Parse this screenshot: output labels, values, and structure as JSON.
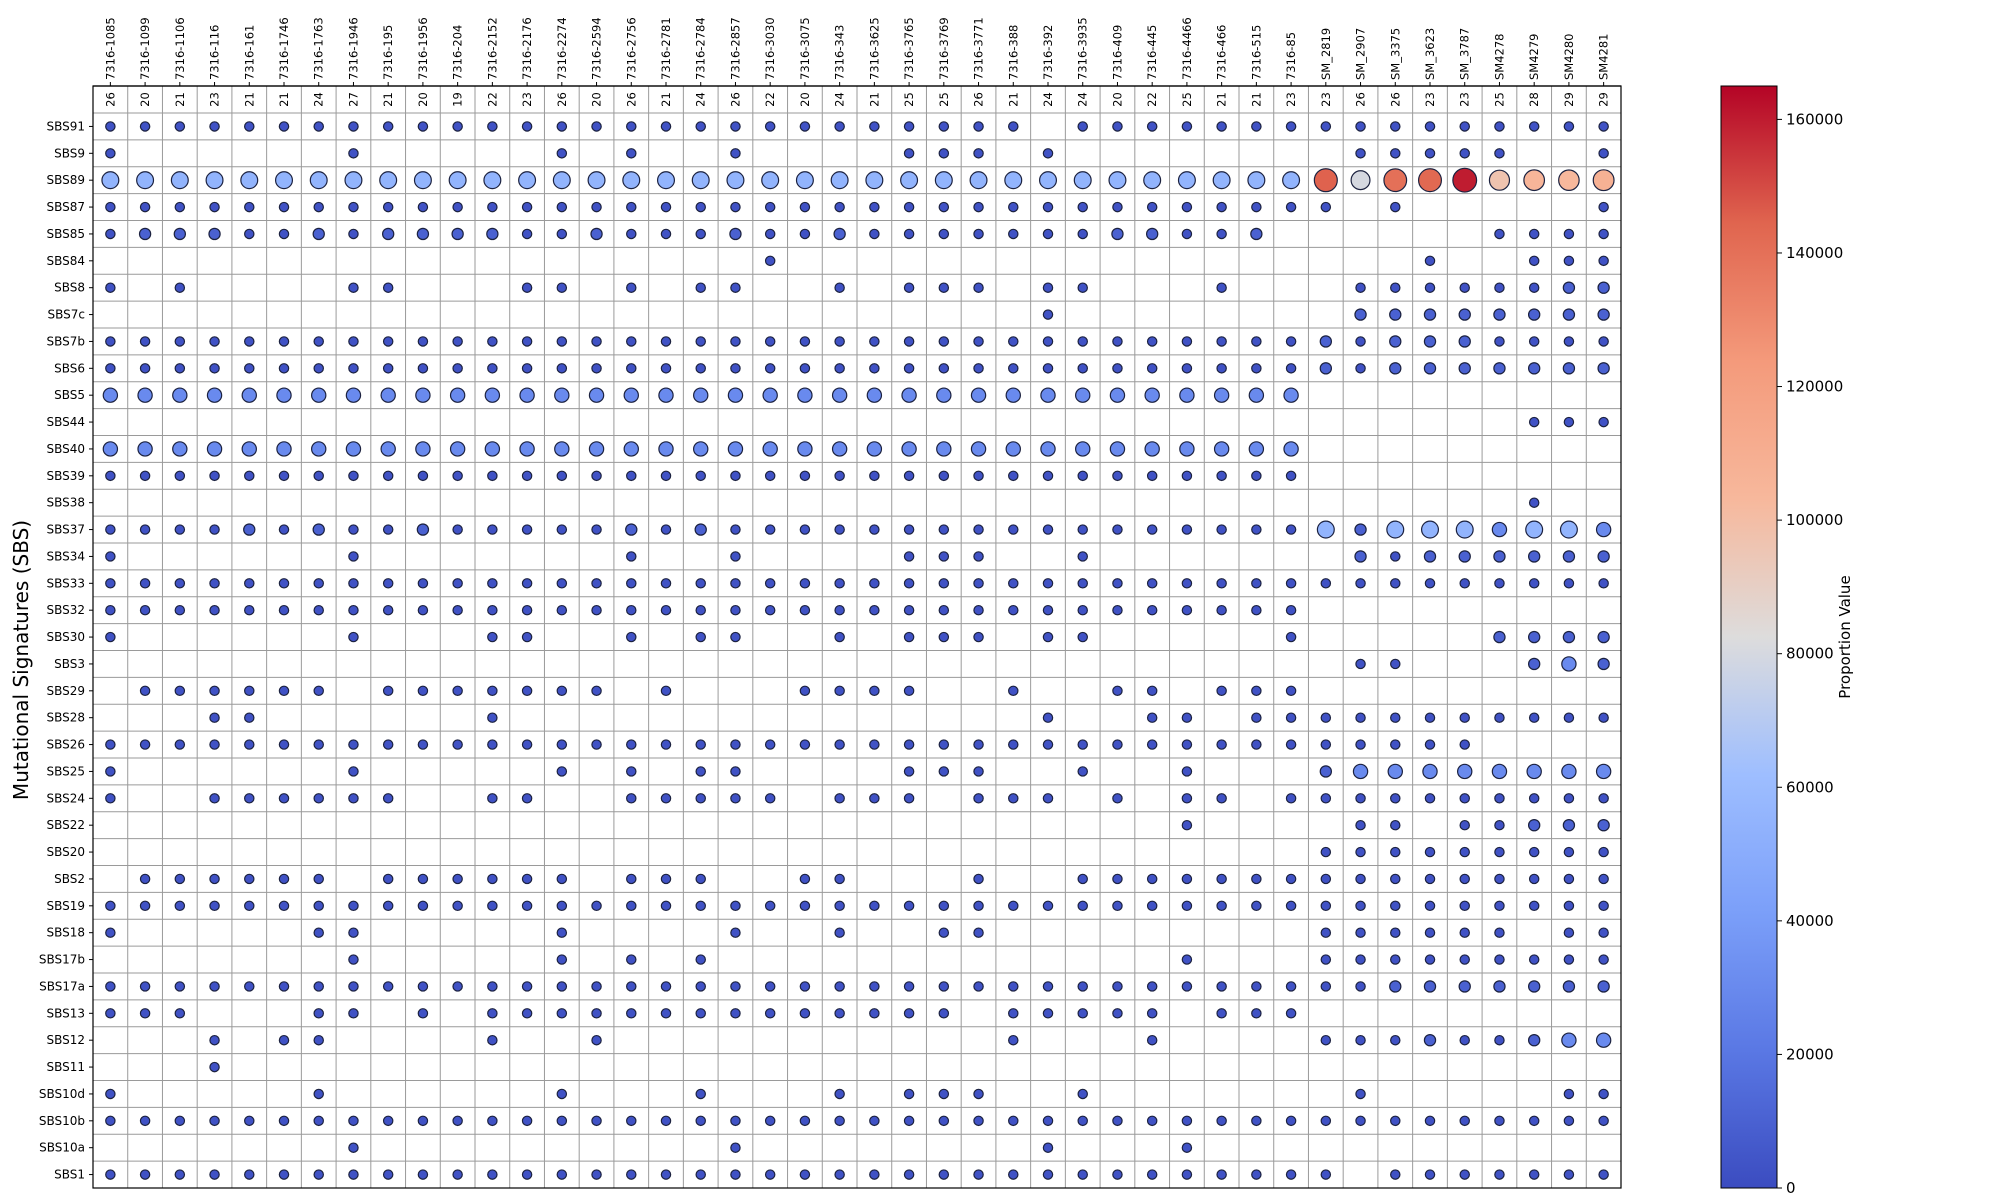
{
  "chart_data": {
    "type": "bubble-matrix",
    "ylabel": "Mutational Signatures (SBS)",
    "colorbar": {
      "label": "Proportion Value",
      "min": 0,
      "max": 165000,
      "ticks": [
        0,
        20000,
        40000,
        60000,
        80000,
        100000,
        120000,
        140000,
        160000
      ],
      "colormap": "coolwarm"
    },
    "samples": [
      "7316-1085",
      "7316-1099",
      "7316-1106",
      "7316-116",
      "7316-161",
      "7316-1746",
      "7316-1763",
      "7316-1946",
      "7316-195",
      "7316-1956",
      "7316-204",
      "7316-2152",
      "7316-2176",
      "7316-2274",
      "7316-2594",
      "7316-2756",
      "7316-2781",
      "7316-2784",
      "7316-2857",
      "7316-3030",
      "7316-3075",
      "7316-343",
      "7316-3625",
      "7316-3765",
      "7316-3769",
      "7316-3771",
      "7316-388",
      "7316-392",
      "7316-3935",
      "7316-409",
      "7316-445",
      "7316-4466",
      "7316-466",
      "7316-515",
      "7316-85",
      "SM_2819",
      "SM_2907",
      "SM_3375",
      "SM_3623",
      "SM_3787",
      "SM4278",
      "SM4279",
      "SM4280",
      "SM4281"
    ],
    "sample_counts": [
      26,
      20,
      21,
      23,
      21,
      21,
      24,
      27,
      21,
      20,
      19,
      22,
      23,
      26,
      20,
      26,
      21,
      24,
      26,
      22,
      20,
      24,
      21,
      25,
      25,
      26,
      21,
      24,
      24,
      20,
      22,
      25,
      21,
      21,
      23,
      23,
      26,
      26,
      23,
      23,
      25,
      28,
      29,
      29
    ],
    "signatures": [
      "SBS91",
      "SBS9",
      "SBS89",
      "SBS87",
      "SBS85",
      "SBS84",
      "SBS8",
      "SBS7c",
      "SBS7b",
      "SBS6",
      "SBS5",
      "SBS44",
      "SBS40",
      "SBS39",
      "SBS38",
      "SBS37",
      "SBS34",
      "SBS33",
      "SBS32",
      "SBS30",
      "SBS3",
      "SBS29",
      "SBS28",
      "SBS26",
      "SBS25",
      "SBS24",
      "SBS22",
      "SBS20",
      "SBS2",
      "SBS19",
      "SBS18",
      "SBS17b",
      "SBS17a",
      "SBS13",
      "SBS12",
      "SBS11",
      "SBS10d",
      "SBS10b",
      "SBS10a",
      "SBS1"
    ],
    "size_levels": {
      "1": 3000,
      "2": 10000,
      "3": 30000,
      "4": 55000,
      "5": 62000
    },
    "levels_by_signature": {
      "SBS91": "11111111111111111111111111101111111111111111",
      "SBS9": "10000001000001010010000111010000000011111001",
      "SBS89": "44444444444444444444444444444444444555555555",
      "SBS87": "11111111111111111111111111111111111101000001",
      "SBS85": "12221121222211211121121111111221120000001111",
      "SBS84": "00000000000000000001000000000000000000100111",
      "SBS8": "10100001100011010110010111011000100011111122",
      "SBS7c": "00000000000000000000000000010000000022222222",
      "SBS7b": "11111111111111111111111111111111111212221111",
      "SBS6": "11111111111111111111111111111111111212222222",
      "SBS5": "33333333333333333333333333333333333000000000",
      "SBS44": "00000000000000000000000000000000000000000111",
      "SBS40": "33333333333333333333333333333333333000000000",
      "SBS39": "11111111111111111111111111111111111000000000",
      "SBS38": "00000000000000000000000000000000000000000100",
      "SBS37": "11112121121111121211111111111111111424443443",
      "SBS34": "10000001000000010010000111001000000021222222",
      "SBS33": "11111111111111111111111111111111111111111111",
      "SBS32": "11111111111111111111111111111111111000000000",
      "SBS30": "10000001000110010110010111011000001000002222",
      "SBS3": "00000000000000000000000000000000000011000232",
      "SBS29": "01111110111111101000111100100110111000000000",
      "SBS28": "00011000000100000000000000010011011111111111",
      "SBS26": "11111111111111111111111111111111111111110000",
      "SBS25": "10000001000001010110000111001001000233333333",
      "SBS24": "10011111100110011111011101110101101111111111",
      "SBS22": "00000000000000000000000000000001000011011222",
      "SBS20": "00000000000000000000000000000000000111111111",
      "SBS2": "01111110111111011100110001001111111111111111",
      "SBS19": "11111111111111111111111111111111111111111111",
      "SBS18": "10000011000001000010010011000000000111111011",
      "SBS17b": "00000001000001010100000000000001000111111111",
      "SBS17a": "11111111111111111111111111111111111112222222",
      "SBS13": "11100011010111111111111110111110111000000000",
      "SBS12": "00010110000100100000000000100010000111211233",
      "SBS11": "00010000000000000000000000000000000000000000",
      "SBS10d": "10000010000001000100010111001000000010000011",
      "SBS10b": "11111111111111111111111111111111111111111111",
      "SBS10a": "00000001000000000010000000010001000000000000",
      "SBS1": "11111111111111111111111111111111111101111111"
    },
    "special_values": {
      "SBS89|SM_2819": 145000,
      "SBS89|SM_2907": 80000,
      "SBS89|SM_3375": 140000,
      "SBS89|SM_3623": 143000,
      "SBS89|SM_3787": 160000,
      "SBS89|SM4278": 97000,
      "SBS89|SM4279": 105000,
      "SBS89|SM4280": 103000,
      "SBS89|SM4281": 108000
    }
  }
}
